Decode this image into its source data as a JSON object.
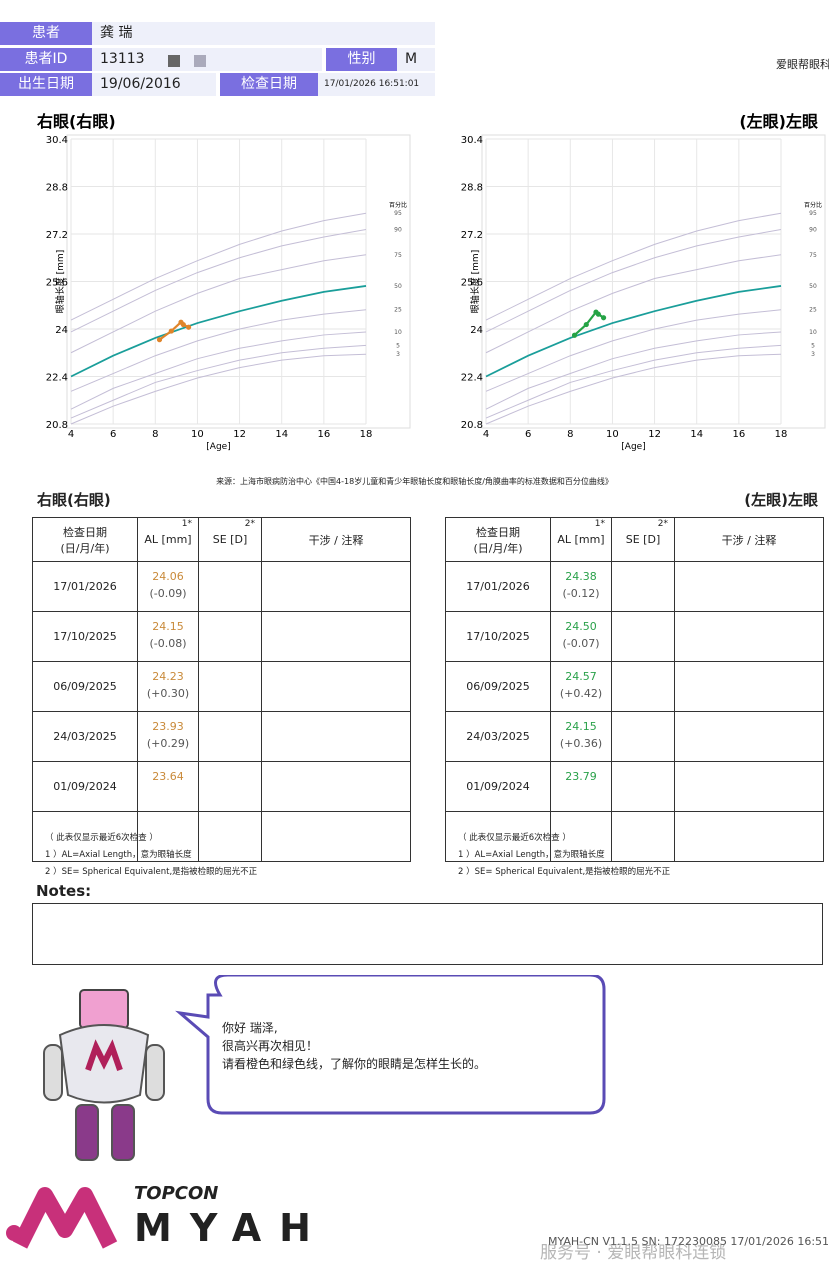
{
  "header": {
    "patient_label": "患者",
    "patient_name": "龚 瑞",
    "id_label": "患者ID",
    "patient_id": "13113",
    "sex_label": "性别",
    "sex": "M",
    "birth_label": "出生日期",
    "birth_date": "19/06/2016",
    "exam_label": "检查日期",
    "exam_datetime": "17/01/2026 16:51:01",
    "clinic": "爱眼帮眼科"
  },
  "chart_data": [
    {
      "type": "line",
      "title": "右眼(右眼)",
      "x_label": "[Age]",
      "y_label": "眼轴长度 [mm]",
      "percentile_label": "百分比",
      "xlim": [
        4,
        18
      ],
      "xticks": [
        4,
        6,
        8,
        10,
        12,
        14,
        16,
        18
      ],
      "ylim": [
        20.8,
        30.4
      ],
      "yticks": [
        20.8,
        22.4,
        24,
        25.6,
        27.2,
        28.8,
        30.4
      ],
      "grid": true,
      "x": [
        4,
        6,
        8,
        10,
        12,
        14,
        16,
        18
      ],
      "series": [
        {
          "name": "95",
          "color": "#c4bed6",
          "values": [
            24.3,
            25.0,
            25.7,
            26.3,
            26.85,
            27.3,
            27.65,
            27.9
          ]
        },
        {
          "name": "90",
          "color": "#c4bed6",
          "values": [
            23.9,
            24.6,
            25.3,
            25.9,
            26.4,
            26.8,
            27.1,
            27.35
          ]
        },
        {
          "name": "75",
          "color": "#c4bed6",
          "values": [
            23.2,
            23.9,
            24.6,
            25.2,
            25.7,
            26.0,
            26.3,
            26.5
          ]
        },
        {
          "name": "50",
          "color": "#1a9e9a",
          "values": [
            22.4,
            23.1,
            23.7,
            24.2,
            24.6,
            24.95,
            25.25,
            25.45
          ]
        },
        {
          "name": "25",
          "color": "#c4bed6",
          "values": [
            21.9,
            22.5,
            23.1,
            23.6,
            24.0,
            24.3,
            24.5,
            24.65
          ]
        },
        {
          "name": "10",
          "color": "#c4bed6",
          "values": [
            21.3,
            22.0,
            22.5,
            23.0,
            23.35,
            23.6,
            23.8,
            23.9
          ]
        },
        {
          "name": "5",
          "color": "#c4bed6",
          "values": [
            21.0,
            21.6,
            22.2,
            22.6,
            22.95,
            23.2,
            23.35,
            23.45
          ]
        },
        {
          "name": "3",
          "color": "#c4bed6",
          "values": [
            20.8,
            21.4,
            21.9,
            22.35,
            22.7,
            22.95,
            23.1,
            23.15
          ]
        },
        {
          "color": "#e0852a",
          "markers": true,
          "x": [
            8.2,
            8.76,
            9.22,
            9.33,
            9.58
          ],
          "values": [
            23.64,
            23.93,
            24.23,
            24.15,
            24.06
          ]
        }
      ]
    },
    {
      "type": "line",
      "title": "(左眼)左眼",
      "x_label": "[Age]",
      "y_label": "眼轴长度 [mm]",
      "percentile_label": "百分比",
      "xlim": [
        4,
        18
      ],
      "xticks": [
        4,
        6,
        8,
        10,
        12,
        14,
        16,
        18
      ],
      "ylim": [
        20.8,
        30.4
      ],
      "yticks": [
        20.8,
        22.4,
        24,
        25.6,
        27.2,
        28.8,
        30.4
      ],
      "grid": true,
      "x": [
        4,
        6,
        8,
        10,
        12,
        14,
        16,
        18
      ],
      "series": [
        {
          "name": "95",
          "color": "#c4bed6",
          "values": [
            24.3,
            25.0,
            25.7,
            26.3,
            26.85,
            27.3,
            27.65,
            27.9
          ]
        },
        {
          "name": "90",
          "color": "#c4bed6",
          "values": [
            23.9,
            24.6,
            25.3,
            25.9,
            26.4,
            26.8,
            27.1,
            27.35
          ]
        },
        {
          "name": "75",
          "color": "#c4bed6",
          "values": [
            23.2,
            23.9,
            24.6,
            25.2,
            25.7,
            26.0,
            26.3,
            26.5
          ]
        },
        {
          "name": "50",
          "color": "#1a9e9a",
          "values": [
            22.4,
            23.1,
            23.7,
            24.2,
            24.6,
            24.95,
            25.25,
            25.45
          ]
        },
        {
          "name": "25",
          "color": "#c4bed6",
          "values": [
            21.9,
            22.5,
            23.1,
            23.6,
            24.0,
            24.3,
            24.5,
            24.65
          ]
        },
        {
          "name": "10",
          "color": "#c4bed6",
          "values": [
            21.3,
            22.0,
            22.5,
            23.0,
            23.35,
            23.6,
            23.8,
            23.9
          ]
        },
        {
          "name": "5",
          "color": "#c4bed6",
          "values": [
            21.0,
            21.6,
            22.2,
            22.6,
            22.95,
            23.2,
            23.35,
            23.45
          ]
        },
        {
          "name": "3",
          "color": "#c4bed6",
          "values": [
            20.8,
            21.4,
            21.9,
            22.35,
            22.7,
            22.95,
            23.1,
            23.15
          ]
        },
        {
          "color": "#25a345",
          "markers": true,
          "x": [
            8.2,
            8.76,
            9.22,
            9.33,
            9.58
          ],
          "values": [
            23.79,
            24.15,
            24.57,
            24.5,
            24.38
          ]
        }
      ]
    }
  ],
  "source": "来源：上海市眼病防治中心《中国4-18岁儿童和青少年眼轴长度和眼轴长度/角膜曲率的标准数据和百分位曲线》",
  "tables": [
    {
      "title": "右眼(右眼)",
      "value_color": "#c98a3a",
      "headers": [
        {
          "text": [
            "检查日期",
            "(日/月/年)"
          ]
        },
        {
          "text": [
            "AL [mm]"
          ],
          "mark": "1*"
        },
        {
          "text": [
            "SE [D]"
          ],
          "mark": "2*"
        },
        {
          "text": [
            "干涉 / 注释"
          ]
        }
      ],
      "rows": [
        {
          "date": "17/01/2026",
          "al": "24.06",
          "change": "(-0.09)"
        },
        {
          "date": "17/10/2025",
          "al": "24.15",
          "change": "(-0.08)"
        },
        {
          "date": "06/09/2025",
          "al": "24.23",
          "change": "(+0.30)"
        },
        {
          "date": "24/03/2025",
          "al": "23.93",
          "change": "(+0.29)"
        },
        {
          "date": "01/09/2024",
          "al": "23.64"
        }
      ],
      "footnotes": [
        "（ 此表仅显示最近6次检查 ）",
        "1 ）AL=Axial Length，意为眼轴长度",
        "2 ）SE= Spherical Equivalent,是指被检眼的屈光不正"
      ]
    },
    {
      "title": "(左眼)左眼",
      "value_color": "#2aa14a",
      "headers": [
        {
          "text": [
            "检查日期",
            "(日/月/年)"
          ]
        },
        {
          "text": [
            "AL [mm]"
          ],
          "mark": "1*"
        },
        {
          "text": [
            "SE [D]"
          ],
          "mark": "2*"
        },
        {
          "text": [
            "干涉 / 注释"
          ]
        }
      ],
      "rows": [
        {
          "date": "17/01/2026",
          "al": "24.38",
          "change": "(-0.12)"
        },
        {
          "date": "17/10/2025",
          "al": "24.50",
          "change": "(-0.07)"
        },
        {
          "date": "06/09/2025",
          "al": "24.57",
          "change": "(+0.42)"
        },
        {
          "date": "24/03/2025",
          "al": "24.15",
          "change": "(+0.36)"
        },
        {
          "date": "01/09/2024",
          "al": "23.79"
        }
      ],
      "footnotes": [
        "（ 此表仅显示最近6次检查 ）",
        "1 ）AL=Axial Length，意为眼轴长度",
        "2 ）SE= Spherical Equivalent,是指被检眼的屈光不正"
      ]
    }
  ],
  "notes_label": "Notes:",
  "bubble": {
    "lines": [
      "你好 瑞泽,",
      "很高兴再次相见！",
      "请看橙色和绿色线，了解你的眼睛是怎样生长的。"
    ]
  },
  "footer": {
    "brand": "TOPCON",
    "product": "MYAH",
    "version": "MYAH-CN V1.1.5 SN: 172230085 17/01/2026 16:51",
    "watermark": "服务号 · 爱眼帮眼科连锁"
  }
}
